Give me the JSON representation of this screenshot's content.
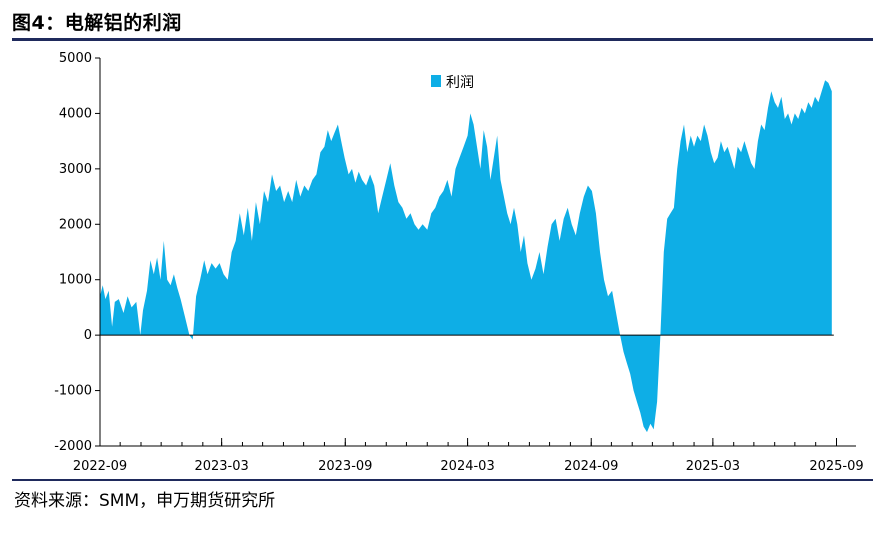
{
  "header": {
    "title": "图4：电解铝的利润"
  },
  "footer": {
    "source": "资料来源：SMM，申万期货研究所"
  },
  "colors": {
    "series": "#0eaee6",
    "rule": "#1f2a5c",
    "axis": "#000000"
  },
  "chart_data": {
    "type": "area",
    "title": "图4：电解铝的利润",
    "xlabel": "",
    "ylabel": "",
    "ylim": [
      -2000,
      5000
    ],
    "yticks": [
      -2000,
      -1000,
      0,
      1000,
      2000,
      3000,
      4000,
      5000
    ],
    "xlim": [
      "2022-09-01",
      "2025-09-30"
    ],
    "xticks": [
      "2022-09",
      "2023-03",
      "2023-09",
      "2024-03",
      "2024-09",
      "2025-03",
      "2025-09"
    ],
    "grid": false,
    "legend": {
      "position": "top-center",
      "entries": [
        "利润"
      ]
    },
    "series": [
      {
        "name": "利润",
        "color": "#0eaee6",
        "points": [
          [
            "2022-09-01",
            700
          ],
          [
            "2022-09-05",
            900
          ],
          [
            "2022-09-09",
            650
          ],
          [
            "2022-09-14",
            800
          ],
          [
            "2022-09-19",
            150
          ],
          [
            "2022-09-23",
            600
          ],
          [
            "2022-09-29",
            650
          ],
          [
            "2022-10-06",
            400
          ],
          [
            "2022-10-12",
            700
          ],
          [
            "2022-10-18",
            500
          ],
          [
            "2022-10-25",
            600
          ],
          [
            "2022-10-31",
            0
          ],
          [
            "2022-11-04",
            450
          ],
          [
            "2022-11-10",
            800
          ],
          [
            "2022-11-15",
            1350
          ],
          [
            "2022-11-20",
            1100
          ],
          [
            "2022-11-25",
            1400
          ],
          [
            "2022-11-30",
            1000
          ],
          [
            "2022-12-05",
            1700
          ],
          [
            "2022-12-10",
            1000
          ],
          [
            "2022-12-15",
            900
          ],
          [
            "2022-12-20",
            1100
          ],
          [
            "2022-12-25",
            850
          ],
          [
            "2022-12-30",
            650
          ],
          [
            "2023-01-05",
            350
          ],
          [
            "2023-01-12",
            0
          ],
          [
            "2023-01-17",
            -80
          ],
          [
            "2023-01-22",
            700
          ],
          [
            "2023-01-28",
            1000
          ],
          [
            "2023-02-03",
            1350
          ],
          [
            "2023-02-08",
            1100
          ],
          [
            "2023-02-14",
            1300
          ],
          [
            "2023-02-20",
            1200
          ],
          [
            "2023-02-26",
            1300
          ],
          [
            "2023-03-04",
            1100
          ],
          [
            "2023-03-10",
            1000
          ],
          [
            "2023-03-16",
            1500
          ],
          [
            "2023-03-22",
            1700
          ],
          [
            "2023-03-28",
            2200
          ],
          [
            "2023-04-03",
            1800
          ],
          [
            "2023-04-09",
            2300
          ],
          [
            "2023-04-15",
            1700
          ],
          [
            "2023-04-21",
            2400
          ],
          [
            "2023-04-27",
            2000
          ],
          [
            "2023-05-03",
            2600
          ],
          [
            "2023-05-09",
            2400
          ],
          [
            "2023-05-15",
            2900
          ],
          [
            "2023-05-21",
            2600
          ],
          [
            "2023-05-27",
            2700
          ],
          [
            "2023-06-02",
            2400
          ],
          [
            "2023-06-08",
            2600
          ],
          [
            "2023-06-14",
            2400
          ],
          [
            "2023-06-20",
            2800
          ],
          [
            "2023-06-26",
            2500
          ],
          [
            "2023-07-02",
            2700
          ],
          [
            "2023-07-08",
            2600
          ],
          [
            "2023-07-14",
            2800
          ],
          [
            "2023-07-20",
            2900
          ],
          [
            "2023-07-26",
            3300
          ],
          [
            "2023-08-01",
            3400
          ],
          [
            "2023-08-06",
            3700
          ],
          [
            "2023-08-11",
            3500
          ],
          [
            "2023-08-16",
            3650
          ],
          [
            "2023-08-21",
            3800
          ],
          [
            "2023-08-26",
            3500
          ],
          [
            "2023-08-31",
            3200
          ],
          [
            "2023-09-06",
            2900
          ],
          [
            "2023-09-11",
            3000
          ],
          [
            "2023-09-16",
            2750
          ],
          [
            "2023-09-21",
            2950
          ],
          [
            "2023-09-26",
            2800
          ],
          [
            "2023-10-02",
            2700
          ],
          [
            "2023-10-08",
            2900
          ],
          [
            "2023-10-14",
            2700
          ],
          [
            "2023-10-20",
            2200
          ],
          [
            "2023-10-26",
            2500
          ],
          [
            "2023-11-01",
            2800
          ],
          [
            "2023-11-07",
            3100
          ],
          [
            "2023-11-13",
            2700
          ],
          [
            "2023-11-19",
            2400
          ],
          [
            "2023-11-25",
            2300
          ],
          [
            "2023-12-01",
            2100
          ],
          [
            "2023-12-07",
            2200
          ],
          [
            "2023-12-13",
            2000
          ],
          [
            "2023-12-19",
            1900
          ],
          [
            "2023-12-25",
            2000
          ],
          [
            "2024-01-01",
            1900
          ],
          [
            "2024-01-07",
            2200
          ],
          [
            "2024-01-13",
            2300
          ],
          [
            "2024-01-19",
            2500
          ],
          [
            "2024-01-25",
            2600
          ],
          [
            "2024-01-31",
            2800
          ],
          [
            "2024-02-06",
            2500
          ],
          [
            "2024-02-12",
            3000
          ],
          [
            "2024-02-18",
            3200
          ],
          [
            "2024-02-24",
            3400
          ],
          [
            "2024-03-01",
            3600
          ],
          [
            "2024-03-05",
            4000
          ],
          [
            "2024-03-10",
            3800
          ],
          [
            "2024-03-15",
            3400
          ],
          [
            "2024-03-20",
            3000
          ],
          [
            "2024-03-25",
            3700
          ],
          [
            "2024-03-30",
            3400
          ],
          [
            "2024-04-04",
            2800
          ],
          [
            "2024-04-09",
            3200
          ],
          [
            "2024-04-14",
            3600
          ],
          [
            "2024-04-19",
            2800
          ],
          [
            "2024-04-24",
            2500
          ],
          [
            "2024-04-29",
            2200
          ],
          [
            "2024-05-04",
            2000
          ],
          [
            "2024-05-09",
            2300
          ],
          [
            "2024-05-14",
            2000
          ],
          [
            "2024-05-19",
            1500
          ],
          [
            "2024-05-24",
            1800
          ],
          [
            "2024-05-29",
            1300
          ],
          [
            "2024-06-04",
            1000
          ],
          [
            "2024-06-10",
            1200
          ],
          [
            "2024-06-16",
            1500
          ],
          [
            "2024-06-22",
            1100
          ],
          [
            "2024-06-28",
            1600
          ],
          [
            "2024-07-04",
            2000
          ],
          [
            "2024-07-10",
            2100
          ],
          [
            "2024-07-16",
            1700
          ],
          [
            "2024-07-22",
            2100
          ],
          [
            "2024-07-28",
            2300
          ],
          [
            "2024-08-03",
            2000
          ],
          [
            "2024-08-09",
            1800
          ],
          [
            "2024-08-15",
            2200
          ],
          [
            "2024-08-21",
            2500
          ],
          [
            "2024-08-27",
            2700
          ],
          [
            "2024-09-02",
            2600
          ],
          [
            "2024-09-08",
            2200
          ],
          [
            "2024-09-14",
            1500
          ],
          [
            "2024-09-20",
            1000
          ],
          [
            "2024-09-26",
            700
          ],
          [
            "2024-10-02",
            800
          ],
          [
            "2024-10-08",
            400
          ],
          [
            "2024-10-14",
            0
          ],
          [
            "2024-10-19",
            -300
          ],
          [
            "2024-10-24",
            -500
          ],
          [
            "2024-10-29",
            -700
          ],
          [
            "2024-11-03",
            -1000
          ],
          [
            "2024-11-08",
            -1200
          ],
          [
            "2024-11-13",
            -1400
          ],
          [
            "2024-11-18",
            -1650
          ],
          [
            "2024-11-23",
            -1750
          ],
          [
            "2024-11-28",
            -1600
          ],
          [
            "2024-12-03",
            -1700
          ],
          [
            "2024-12-08",
            -1200
          ],
          [
            "2024-12-13",
            0
          ],
          [
            "2024-12-18",
            1500
          ],
          [
            "2024-12-23",
            2100
          ],
          [
            "2024-12-28",
            2200
          ],
          [
            "2025-01-02",
            2300
          ],
          [
            "2025-01-07",
            3000
          ],
          [
            "2025-01-12",
            3500
          ],
          [
            "2025-01-17",
            3800
          ],
          [
            "2025-01-22",
            3300
          ],
          [
            "2025-01-27",
            3600
          ],
          [
            "2025-02-01",
            3400
          ],
          [
            "2025-02-06",
            3600
          ],
          [
            "2025-02-11",
            3500
          ],
          [
            "2025-02-16",
            3800
          ],
          [
            "2025-02-21",
            3600
          ],
          [
            "2025-02-26",
            3300
          ],
          [
            "2025-03-03",
            3100
          ],
          [
            "2025-03-08",
            3200
          ],
          [
            "2025-03-13",
            3500
          ],
          [
            "2025-03-18",
            3300
          ],
          [
            "2025-03-23",
            3400
          ],
          [
            "2025-03-28",
            3200
          ],
          [
            "2025-04-02",
            3000
          ],
          [
            "2025-04-07",
            3400
          ],
          [
            "2025-04-12",
            3300
          ],
          [
            "2025-04-17",
            3500
          ],
          [
            "2025-04-22",
            3300
          ],
          [
            "2025-04-27",
            3100
          ],
          [
            "2025-05-02",
            3000
          ],
          [
            "2025-05-07",
            3500
          ],
          [
            "2025-05-12",
            3800
          ],
          [
            "2025-05-17",
            3700
          ],
          [
            "2025-05-22",
            4100
          ],
          [
            "2025-05-27",
            4400
          ],
          [
            "2025-06-01",
            4200
          ],
          [
            "2025-06-06",
            4100
          ],
          [
            "2025-06-11",
            4300
          ],
          [
            "2025-06-16",
            3900
          ],
          [
            "2025-06-21",
            4000
          ],
          [
            "2025-06-26",
            3800
          ],
          [
            "2025-07-01",
            4000
          ],
          [
            "2025-07-06",
            3900
          ],
          [
            "2025-07-11",
            4100
          ],
          [
            "2025-07-16",
            4000
          ],
          [
            "2025-07-21",
            4200
          ],
          [
            "2025-07-26",
            4100
          ],
          [
            "2025-07-31",
            4300
          ],
          [
            "2025-08-05",
            4200
          ],
          [
            "2025-08-10",
            4400
          ],
          [
            "2025-08-15",
            4600
          ],
          [
            "2025-08-20",
            4550
          ],
          [
            "2025-08-25",
            4400
          ]
        ]
      }
    ]
  }
}
